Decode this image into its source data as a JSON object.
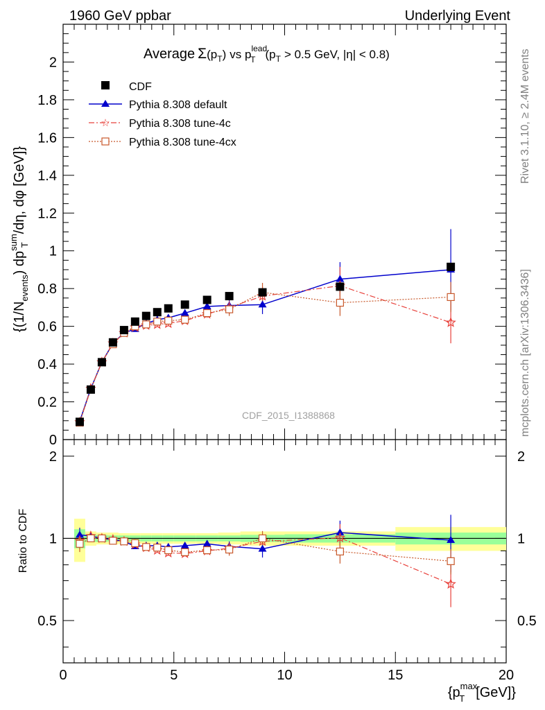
{
  "header": {
    "left": "1960 GeV ppbar",
    "right": "Underlying Event"
  },
  "title": {
    "average": "Average",
    "sigma": "Σ",
    "pt_open": "(p",
    "pt_sub": "T",
    "pt_close": ")",
    "vs": "vs p",
    "lead_sup": "lead",
    "lead_sub": "T",
    "cut_open": "(p",
    "cut_sub": "T",
    "cut_rest": "> 0.5 GeV, |η| < 0.8)"
  },
  "ylabel": {
    "part1": "{(1/N",
    "events_sub": "events",
    "part2": ") dp",
    "sum_sup": "sum",
    "t_sub": "T",
    "part3": "/dη, dφ [GeV]}"
  },
  "ratio_ylabel": "Ratio to CDF",
  "xlabel": {
    "part1": "{p",
    "max_sup": "max",
    "t_sub": "T",
    "part2": "[GeV]}"
  },
  "watermark": "CDF_2015_I1388868",
  "side_rivet": "Rivet 3.1.10, ≥ 2.4M events",
  "side_mcplots": "mcplots.cern.ch [arXiv:1306.3436]",
  "colors": {
    "cdf": "#000000",
    "default": "#0000cc",
    "tune4c": "#e8403a",
    "tune4cx": "#c8582a",
    "band_inner": "#99ff99",
    "band_outer": "#ffff99"
  },
  "chart_data": {
    "type": "scatter",
    "xlim": [
      0,
      20
    ],
    "ylim_main": [
      0,
      2.2
    ],
    "ylim_ratio": [
      0.35,
      2.3
    ],
    "x_ticks": [
      0,
      5,
      10,
      15,
      20
    ],
    "x_tick_labels": [
      "0",
      "5",
      "10",
      "15",
      "20"
    ],
    "y_ticks_main": [
      0,
      0.2,
      0.4,
      0.6,
      0.8,
      1,
      1.2,
      1.4,
      1.6,
      1.8,
      2
    ],
    "y_tick_labels_main": [
      "0",
      "0.2",
      "0.4",
      "0.6",
      "0.8",
      "1",
      "1.2",
      "1.4",
      "1.6",
      "1.8",
      "2"
    ],
    "y_ticks_ratio": [
      0.5,
      1,
      2
    ],
    "y_tick_labels_ratio": [
      "0.5",
      "1",
      "2"
    ],
    "bins": [
      [
        0.5,
        1
      ],
      [
        1,
        1.5
      ],
      [
        1.5,
        2
      ],
      [
        2,
        2.5
      ],
      [
        2.5,
        3
      ],
      [
        3,
        3.5
      ],
      [
        3.5,
        4
      ],
      [
        4,
        4.5
      ],
      [
        4.5,
        5
      ],
      [
        5,
        6
      ],
      [
        6,
        7
      ],
      [
        7,
        8
      ],
      [
        8,
        10
      ],
      [
        10,
        15
      ],
      [
        15,
        20
      ]
    ],
    "x": [
      0.75,
      1.25,
      1.75,
      2.25,
      2.75,
      3.25,
      3.75,
      4.25,
      4.75,
      5.5,
      6.5,
      7.5,
      9.0,
      12.5,
      17.5
    ],
    "series": [
      {
        "name": "CDF",
        "key": "cdf",
        "marker": "square",
        "y": [
          0.094,
          0.265,
          0.41,
          0.515,
          0.58,
          0.625,
          0.655,
          0.675,
          0.695,
          0.715,
          0.74,
          0.76,
          0.78,
          0.81,
          0.915
        ],
        "band_inner": [
          0.08,
          0.03,
          0.03,
          0.025,
          0.025,
          0.025,
          0.025,
          0.025,
          0.025,
          0.025,
          0.025,
          0.025,
          0.03,
          0.035,
          0.05
        ],
        "band_outer": [
          0.18,
          0.06,
          0.05,
          0.05,
          0.045,
          0.045,
          0.045,
          0.045,
          0.045,
          0.045,
          0.045,
          0.05,
          0.06,
          0.06,
          0.1
        ]
      },
      {
        "name": "Pythia 8.308 default",
        "key": "default",
        "marker": "triangle",
        "line": "solid",
        "y": [
          0.097,
          0.27,
          0.41,
          0.51,
          0.565,
          0.585,
          0.615,
          0.635,
          0.645,
          0.67,
          0.705,
          0.71,
          0.715,
          0.85,
          0.9
        ],
        "err": [
          0.006,
          0.006,
          0.006,
          0.006,
          0.006,
          0.006,
          0.01,
          0.01,
          0.012,
          0.015,
          0.02,
          0.03,
          0.05,
          0.09,
          0.215
        ]
      },
      {
        "name": "Pythia 8.308 tune-4c",
        "key": "tune4c",
        "marker": "star",
        "line": "dashdot",
        "y": [
          0.092,
          0.27,
          0.41,
          0.51,
          0.565,
          0.595,
          0.605,
          0.61,
          0.615,
          0.63,
          0.665,
          0.7,
          0.76,
          0.815,
          0.62
        ],
        "err": [
          0.006,
          0.006,
          0.006,
          0.006,
          0.008,
          0.01,
          0.012,
          0.012,
          0.015,
          0.015,
          0.02,
          0.035,
          0.05,
          0.1,
          0.11
        ]
      },
      {
        "name": "Pythia 8.308 tune-4cx",
        "key": "tune4cx",
        "marker": "open-square",
        "line": "dotted",
        "y": [
          0.09,
          0.265,
          0.41,
          0.505,
          0.565,
          0.6,
          0.61,
          0.625,
          0.63,
          0.635,
          0.67,
          0.69,
          0.78,
          0.725,
          0.755
        ],
        "err": [
          0.006,
          0.006,
          0.006,
          0.006,
          0.008,
          0.01,
          0.012,
          0.012,
          0.015,
          0.015,
          0.02,
          0.035,
          0.05,
          0.07,
          0.08
        ]
      }
    ],
    "ratio": {
      "default": [
        1.03,
        1.02,
        1.0,
        0.99,
        0.975,
        0.935,
        0.94,
        0.94,
        0.93,
        0.94,
        0.955,
        0.935,
        0.915,
        1.05,
        0.985
      ],
      "tune4c": [
        0.98,
        1.02,
        1.0,
        0.99,
        0.975,
        0.95,
        0.925,
        0.905,
        0.885,
        0.88,
        0.9,
        0.92,
        0.975,
        1.005,
        0.68
      ],
      "tune4cx": [
        0.955,
        1.0,
        1.0,
        0.98,
        0.975,
        0.96,
        0.93,
        0.925,
        0.905,
        0.89,
        0.905,
        0.91,
        1.0,
        0.895,
        0.825
      ]
    }
  }
}
